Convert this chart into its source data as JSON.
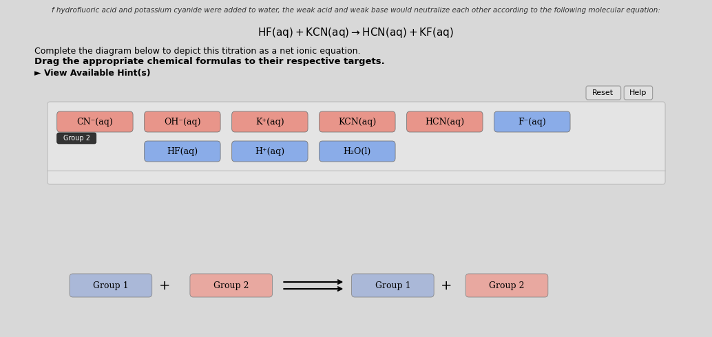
{
  "bg_color": "#d8d8d8",
  "panel_bg": "#f0f0f0",
  "inner_panel_bg": "#e8e8e8",
  "title_text": "f hydrofluoric acid and potassium cyanide were added to water, the weak acid and weak base would neutralize each other according to the following molecular equation:",
  "equation": "HF(aq) + KCN(aq) → HCN(aq) + KF(aq)",
  "subtitle1": "Complete the diagram below to depict this titration as a net ionic equation.",
  "subtitle2": "Drag the appropriate chemical formulas to their respective targets.",
  "hint": "► View Available Hint(s)",
  "pink_color": "#e8958a",
  "blue_color": "#8aace8",
  "dark_pink": "#c8756a",
  "btn_color": "#d0d0d0",
  "row1_pink": [
    "CN⁻(aq)",
    "OH⁻(aq)",
    "K⁺(aq)",
    "KCN(aq)",
    "HCN(aq)"
  ],
  "row1_blue": [
    "F⁻(aq)"
  ],
  "row2_blue": [
    "HF(aq)",
    "H⁺(aq)",
    "H₂O(l)"
  ],
  "group2_label": "Group 2",
  "bottom_blue1": "Group 1",
  "bottom_pink": "Group 2",
  "bottom_blue2": "Group 1",
  "bottom_pink2": "Group 2",
  "reset_label": "Reset",
  "help_label": "Help"
}
